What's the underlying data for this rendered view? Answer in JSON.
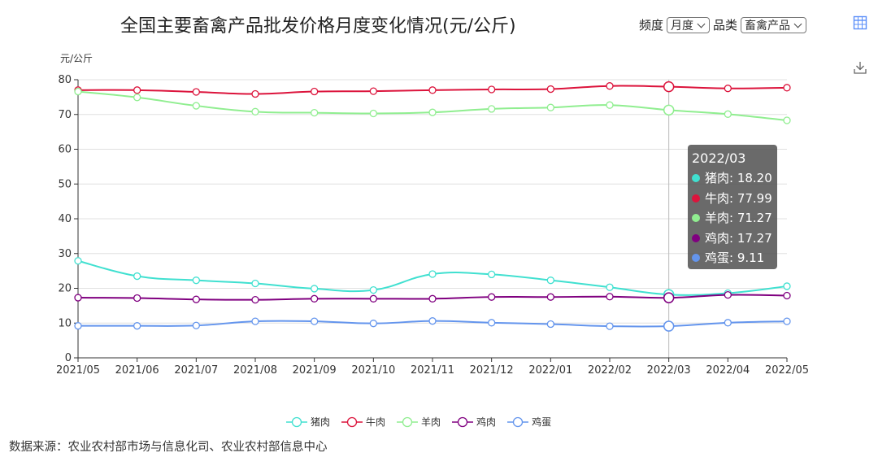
{
  "title": "全国主要畜禽产品批发价格月度变化情况(元/公斤)",
  "controls": {
    "freq_label": "频度",
    "freq_value": "月度",
    "cat_label": "品类",
    "cat_value": "畜禽产品"
  },
  "tooltip": {
    "date": "2022/03",
    "rows": [
      {
        "label": "猪肉: 18.20",
        "color": "#40e0d0"
      },
      {
        "label": "牛肉: 77.99",
        "color": "#dc143c"
      },
      {
        "label": "羊肉: 71.27",
        "color": "#90ee90"
      },
      {
        "label": "鸡肉: 17.27",
        "color": "#800080"
      },
      {
        "label": "鸡蛋: 9.11",
        "color": "#6495ed"
      }
    ]
  },
  "source": "数据来源：农业农村部市场与信息化司、农业农村部信息中心",
  "chart_data": {
    "type": "line",
    "title": "全国主要畜禽产品批发价格月度变化情况(元/公斤)",
    "ylabel": "元/公斤",
    "ylim": [
      0,
      80
    ],
    "yticks": [
      0,
      10,
      20,
      30,
      40,
      50,
      60,
      70,
      80
    ],
    "grid": true,
    "legend_position": "bottom",
    "highlight_index": 10,
    "categories": [
      "2021/05",
      "2021/06",
      "2021/07",
      "2021/08",
      "2021/09",
      "2021/10",
      "2021/11",
      "2021/12",
      "2022/01",
      "2022/02",
      "2022/03",
      "2022/04",
      "2022/05"
    ],
    "series": [
      {
        "name": "猪肉",
        "color": "#40e0d0",
        "values": [
          27.9,
          23.5,
          22.3,
          21.4,
          19.9,
          19.5,
          24.1,
          24.0,
          22.3,
          20.3,
          18.2,
          18.6,
          20.6
        ]
      },
      {
        "name": "牛肉",
        "color": "#dc143c",
        "values": [
          77.0,
          77.0,
          76.5,
          75.9,
          76.6,
          76.7,
          77.0,
          77.2,
          77.3,
          78.2,
          77.99,
          77.5,
          77.7
        ]
      },
      {
        "name": "羊肉",
        "color": "#90ee90",
        "values": [
          76.6,
          74.9,
          72.5,
          70.8,
          70.5,
          70.3,
          70.6,
          71.6,
          72.0,
          72.7,
          71.27,
          70.1,
          68.3
        ]
      },
      {
        "name": "鸡肉",
        "color": "#800080",
        "values": [
          17.3,
          17.2,
          16.8,
          16.7,
          17.0,
          17.0,
          17.0,
          17.5,
          17.5,
          17.6,
          17.27,
          18.1,
          17.9
        ]
      },
      {
        "name": "鸡蛋",
        "color": "#6495ed",
        "values": [
          9.2,
          9.2,
          9.3,
          10.5,
          10.5,
          9.9,
          10.6,
          10.1,
          9.7,
          9.1,
          9.11,
          10.1,
          10.5
        ]
      }
    ]
  }
}
